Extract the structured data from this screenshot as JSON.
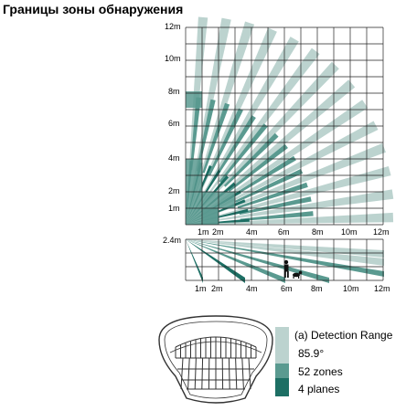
{
  "title": "Границы зоны обнаружения",
  "top_view": {
    "y_labels": [
      "12m",
      "10m",
      "8m",
      "6m",
      "4m",
      "2m",
      "1m"
    ],
    "x_labels": [
      "1m",
      "2m",
      "4m",
      "6m",
      "8m",
      "10m",
      "12m"
    ]
  },
  "side_view": {
    "height_label": "2.4m",
    "x_labels": [
      "1m",
      "2m",
      "4m",
      "6m",
      "8m",
      "10m",
      "12m"
    ]
  },
  "legend": {
    "title": "(a) Detection Range",
    "angle": "85.9°",
    "zones": "52 zones",
    "planes": "4 planes"
  },
  "colors": {
    "light": "#bcd3cf",
    "mid": "#5a9a90",
    "dark": "#1d6f64",
    "grid": "#222222"
  }
}
